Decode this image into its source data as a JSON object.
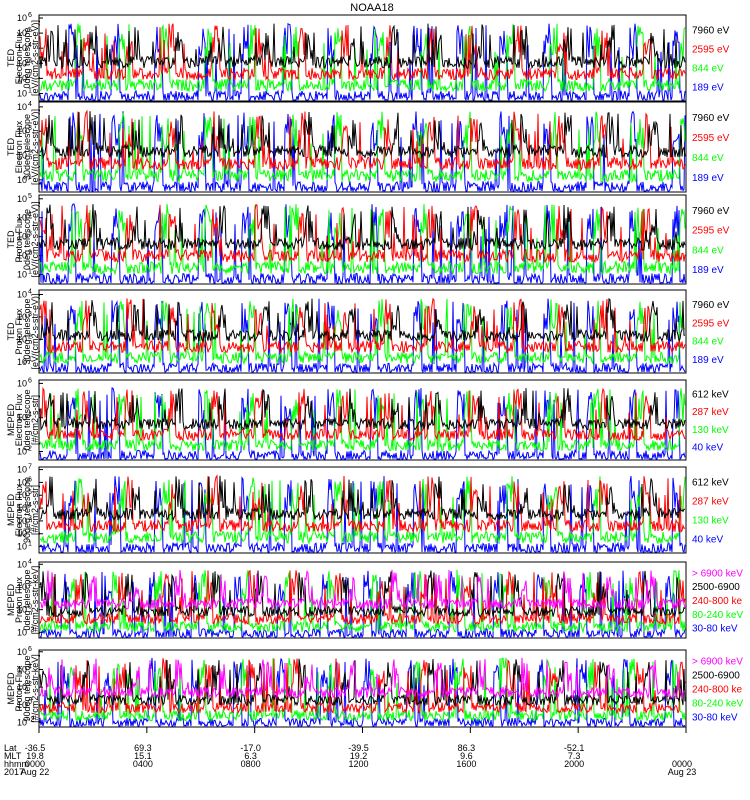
{
  "title": "NOAA18",
  "colors": {
    "black": "#000000",
    "red": "#ff0000",
    "green": "#00ff00",
    "blue": "#0000ff",
    "magenta": "#ff00ff"
  },
  "chart_data": [
    {
      "type": "line",
      "ylabel_lines": [
        "TED",
        "Electron Flux",
        "0deg telescope",
        "[eV/(cm2-s-str-eV)]"
      ],
      "yscale": "log",
      "ytick_exponents": [
        1,
        2,
        3,
        4,
        5,
        6
      ],
      "series": [
        {
          "name": "7960 eV",
          "color": "black"
        },
        {
          "name": "2595 eV",
          "color": "red"
        },
        {
          "name": "844 eV",
          "color": "green"
        },
        {
          "name": "189 eV",
          "color": "blue"
        }
      ]
    },
    {
      "type": "line",
      "ylabel_lines": [
        "TED",
        "Electron Flux",
        "30deg telescope",
        "[eV/(cm2-s-str-eV)]"
      ],
      "yscale": "log",
      "ytick_exponents": [
        1,
        2,
        3,
        4
      ],
      "series": [
        {
          "name": "7960 eV",
          "color": "black"
        },
        {
          "name": "2595 eV",
          "color": "red"
        },
        {
          "name": "844 eV",
          "color": "green"
        },
        {
          "name": "189 eV",
          "color": "blue"
        }
      ]
    },
    {
      "type": "line",
      "ylabel_lines": [
        "TED",
        "Proton Flux",
        "0deg telescope",
        "[eV/(cm2-s-str-eV)]"
      ],
      "yscale": "log",
      "ytick_exponents": [
        1,
        2,
        3,
        4,
        5
      ],
      "series": [
        {
          "name": "7960 eV",
          "color": "black"
        },
        {
          "name": "2595 eV",
          "color": "red"
        },
        {
          "name": "844 eV",
          "color": "green"
        },
        {
          "name": "189 eV",
          "color": "blue"
        }
      ]
    },
    {
      "type": "line",
      "ylabel_lines": [
        "TED",
        "Proton Flux",
        "30deg telescope",
        "[eV/(cm2-s-str-eV)]"
      ],
      "yscale": "log",
      "ytick_exponents": [
        1,
        2,
        3,
        4
      ],
      "series": [
        {
          "name": "7960 eV",
          "color": "black"
        },
        {
          "name": "2595 eV",
          "color": "red"
        },
        {
          "name": "844 eV",
          "color": "green"
        },
        {
          "name": "189 eV",
          "color": "blue"
        }
      ]
    },
    {
      "type": "line",
      "ylabel_lines": [
        "MEPED",
        "Electron Flux",
        "0deg telescope",
        "[#/cm2-s-str]"
      ],
      "yscale": "log",
      "ytick_exponents": [
        2,
        4,
        6
      ],
      "series": [
        {
          "name": "612 keV",
          "color": "black"
        },
        {
          "name": "287 keV",
          "color": "red"
        },
        {
          "name": "130 keV",
          "color": "green"
        },
        {
          "name": "40 keV",
          "color": "blue"
        }
      ]
    },
    {
      "type": "line",
      "ylabel_lines": [
        "MEPED",
        "Electron Flux",
        "90deg telescope",
        "[#/cm2-s-str]"
      ],
      "yscale": "log",
      "ytick_exponents": [
        1,
        2,
        3,
        4,
        5,
        6,
        7
      ],
      "series": [
        {
          "name": "612 keV",
          "color": "black"
        },
        {
          "name": "287 keV",
          "color": "red"
        },
        {
          "name": "130 keV",
          "color": "green"
        },
        {
          "name": "40 keV",
          "color": "blue"
        }
      ]
    },
    {
      "type": "line",
      "ylabel_lines": [
        "MEPED",
        "Proton Flux",
        "0deg telescope",
        "[#/cm2-s-str-keV]"
      ],
      "yscale": "log",
      "ytick_exponents": [
        -2,
        0,
        2,
        4
      ],
      "series": [
        {
          "name": "> 6900 keV",
          "color": "magenta"
        },
        {
          "name": "2500-6900",
          "color": "black"
        },
        {
          "name": "240-800 ke",
          "color": "red"
        },
        {
          "name": "80-240 keV",
          "color": "green"
        },
        {
          "name": "30-80 keV",
          "color": "blue"
        }
      ]
    },
    {
      "type": "line",
      "ylabel_lines": [
        "MEPED",
        "Proton Flux",
        "90deg telescope",
        "[#/cm2-s-str-keV]"
      ],
      "yscale": "log",
      "ytick_exponents": [
        -2,
        0,
        2,
        4,
        6
      ],
      "series": [
        {
          "name": "> 6900 keV",
          "color": "magenta"
        },
        {
          "name": "2500-6900",
          "color": "black"
        },
        {
          "name": "240-800 ke",
          "color": "red"
        },
        {
          "name": "80-240 keV",
          "color": "green"
        },
        {
          "name": "30-80 keV",
          "color": "blue"
        }
      ]
    }
  ],
  "xaxis": {
    "row_labels": [
      "Lat",
      "MLT",
      "hhmm",
      "2017"
    ],
    "ticks": [
      {
        "lat": "-36.5",
        "mlt": "19.8",
        "hhmm": "0000",
        "date": "Aug 22"
      },
      {
        "lat": "69.3",
        "mlt": "15.1",
        "hhmm": "0400",
        "date": ""
      },
      {
        "lat": "-17.0",
        "mlt": "6.3",
        "hhmm": "0800",
        "date": ""
      },
      {
        "lat": "-39.5",
        "mlt": "19.2",
        "hhmm": "1200",
        "date": ""
      },
      {
        "lat": "86.3",
        "mlt": "9.6",
        "hhmm": "1600",
        "date": ""
      },
      {
        "lat": "-52.1",
        "mlt": "7.3",
        "hhmm": "2000",
        "date": ""
      },
      {
        "lat": "",
        "mlt": "",
        "hhmm": "0000",
        "date": "Aug 23"
      }
    ]
  }
}
